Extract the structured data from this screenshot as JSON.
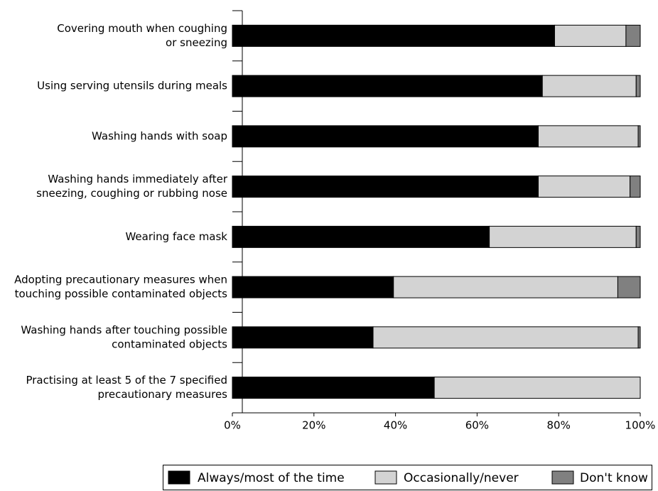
{
  "chart_data": {
    "type": "stacked-bar-horizontal",
    "categories": [
      [
        "Covering mouth when coughing",
        "or sneezing"
      ],
      [
        "Using serving utensils during meals"
      ],
      [
        "Washing hands with soap"
      ],
      [
        "Washing hands immediately after",
        "sneezing, coughing or rubbing nose"
      ],
      [
        "Wearing face mask"
      ],
      [
        "Adopting precautionary measures when",
        "touching possible contaminated objects"
      ],
      [
        "Washing hands after touching possible",
        "contaminated objects"
      ],
      [
        "Practising at least 5 of the 7 specified",
        "precautionary measures"
      ]
    ],
    "series": [
      {
        "name": "Always/most of the time",
        "color": "#000000",
        "values": [
          79,
          76,
          75,
          75,
          63,
          39.5,
          34.5,
          49.5
        ]
      },
      {
        "name": "Occasionally/never",
        "color": "#d3d3d3",
        "values": [
          17.5,
          23,
          24.5,
          22.5,
          36,
          55,
          65,
          50.5
        ]
      },
      {
        "name": "Don't know",
        "color": "#808080",
        "values": [
          3.5,
          1,
          0.5,
          2.5,
          1,
          5.5,
          0.5,
          0
        ]
      }
    ],
    "xlim": [
      0,
      100
    ],
    "xticks": [
      {
        "value": 0,
        "label": "0%"
      },
      {
        "value": 20,
        "label": "20%"
      },
      {
        "value": 40,
        "label": "40%"
      },
      {
        "value": 60,
        "label": "60%"
      },
      {
        "value": 80,
        "label": "80%"
      },
      {
        "value": 100,
        "label": "100%"
      }
    ],
    "legend": "bottom"
  }
}
